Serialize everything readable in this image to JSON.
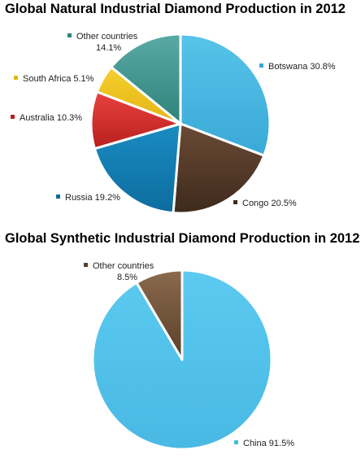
{
  "chart_data": [
    {
      "type": "pie",
      "title": "Global Natural Industrial Diamond Production in 2012",
      "legend": "none (labels beside slices)",
      "slices": [
        {
          "label": "Botswana",
          "value": 30.8,
          "value_label": "30.8%",
          "color": "#56c3ea",
          "color_dark": "#3aa9d6"
        },
        {
          "label": "Congo",
          "value": 20.5,
          "value_label": "20.5%",
          "color": "#6b4a35",
          "color_dark": "#3e2a1c"
        },
        {
          "label": "Russia",
          "value": 19.2,
          "value_label": "19.2%",
          "color": "#1a8cc2",
          "color_dark": "#0d6c9f"
        },
        {
          "label": "Australia",
          "value": 10.3,
          "value_label": "10.3%",
          "color": "#e8413f",
          "color_dark": "#b8201e"
        },
        {
          "label": "South Africa",
          "value": 5.1,
          "value_label": "5.1%",
          "color": "#f5cf2e",
          "color_dark": "#e3b514"
        },
        {
          "label": "Other countries",
          "value": 14.1,
          "value_label": "14.1%",
          "color": "#5aa9a5",
          "color_dark": "#2e837a"
        }
      ]
    },
    {
      "type": "pie",
      "title": "Global Synthetic Industrial Diamond Production in 2012",
      "legend": "none (labels beside slices)",
      "slices": [
        {
          "label": "China",
          "value": 91.5,
          "value_label": "91.5%",
          "color": "#5ccaf0",
          "color_dark": "#48b9e3"
        },
        {
          "label": "Other countries",
          "value": 8.5,
          "value_label": "8.5%",
          "color": "#8a6a4e",
          "color_dark": "#5a3f2a"
        }
      ]
    }
  ]
}
